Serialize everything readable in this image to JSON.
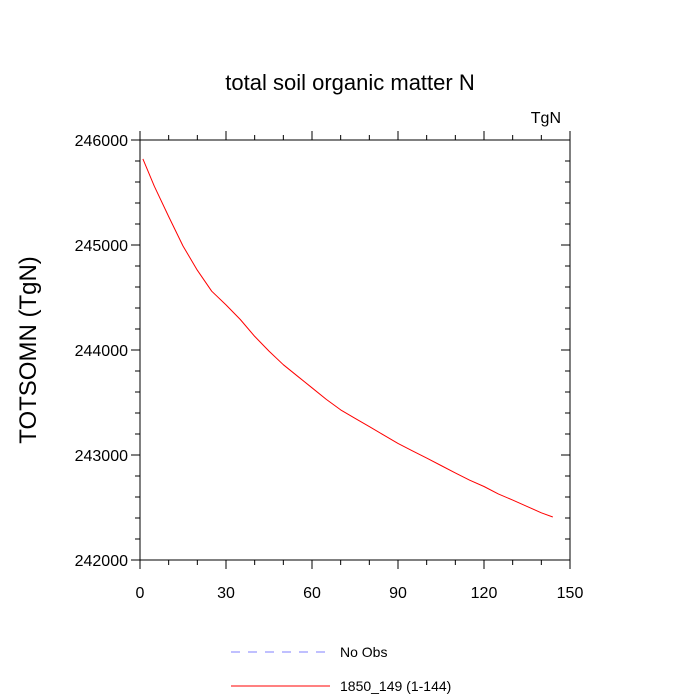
{
  "chart_data": {
    "type": "line",
    "title": "total soil organic matter N",
    "units_label": "TgN",
    "ylabel": "TOTSOMN  (TgN)",
    "xlabel": "",
    "xlim": [
      0,
      150
    ],
    "ylim": [
      242000,
      246000
    ],
    "xticks": [
      0,
      30,
      60,
      90,
      120,
      150
    ],
    "yticks": [
      242000,
      243000,
      244000,
      245000,
      246000
    ],
    "xtick_labels": [
      "0",
      "30",
      "60",
      "90",
      "120",
      "150"
    ],
    "ytick_labels": [
      "242000",
      "243000",
      "244000",
      "245000",
      "246000"
    ],
    "grid": false,
    "legend_position": "bottom",
    "series": [
      {
        "name": "No Obs",
        "color": "#8080ff",
        "dash": "dashed",
        "x": [],
        "y": []
      },
      {
        "name": "1850_149 (1-144)",
        "color": "#ff0000",
        "dash": "solid",
        "x": [
          1,
          5,
          10,
          15,
          20,
          25,
          30,
          35,
          40,
          45,
          50,
          55,
          60,
          65,
          70,
          75,
          80,
          85,
          90,
          95,
          100,
          105,
          110,
          115,
          120,
          125,
          130,
          135,
          140,
          144
        ],
        "y": [
          245820,
          245560,
          245270,
          244990,
          244760,
          244560,
          244430,
          244290,
          244130,
          243990,
          243860,
          243750,
          243640,
          243530,
          243430,
          243350,
          243270,
          243190,
          243110,
          243040,
          242970,
          242900,
          242830,
          242760,
          242700,
          242630,
          242570,
          242510,
          242450,
          242410
        ]
      }
    ]
  }
}
